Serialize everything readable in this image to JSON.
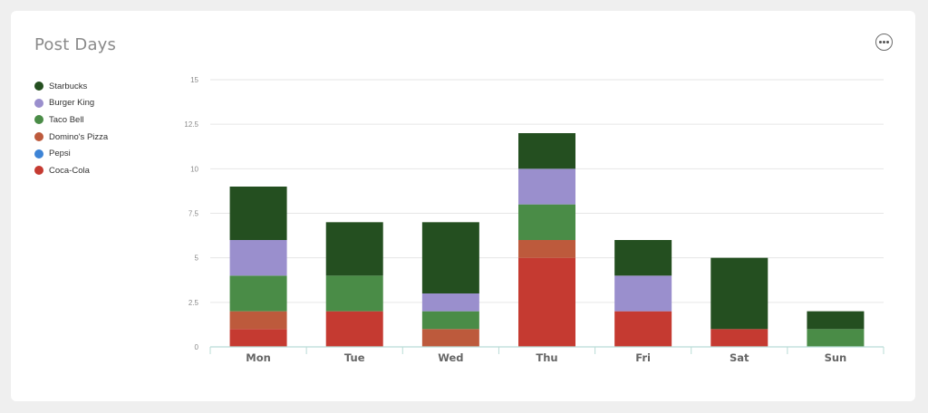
{
  "card": {
    "title": "Post Days",
    "menu_icon": "more-horizontal-circle-icon"
  },
  "chart_data": {
    "type": "bar",
    "stacked": true,
    "title": "Post Days",
    "categories": [
      "Mon",
      "Tue",
      "Wed",
      "Thu",
      "Fri",
      "Sat",
      "Sun"
    ],
    "y_ticks": [
      "0",
      "2.5",
      "5",
      "7.5",
      "10",
      "12.5",
      "15"
    ],
    "ylim": [
      0,
      15
    ],
    "grid": true,
    "legend_position": "left",
    "series": [
      {
        "name": "Coca-Cola",
        "color": "#c53a31",
        "values": [
          1,
          2,
          0,
          5,
          2,
          1,
          0
        ]
      },
      {
        "name": "Pepsi",
        "color": "#3d84d6",
        "values": [
          0,
          0,
          0,
          0,
          0,
          0,
          0
        ]
      },
      {
        "name": "Domino's Pizza",
        "color": "#bd5a3c",
        "values": [
          1,
          0,
          1,
          1,
          0,
          0,
          0
        ]
      },
      {
        "name": "Taco Bell",
        "color": "#4a8c47",
        "values": [
          2,
          2,
          1,
          2,
          0,
          0,
          1
        ]
      },
      {
        "name": "Burger King",
        "color": "#9a8fcd",
        "values": [
          2,
          0,
          1,
          2,
          2,
          0,
          0
        ]
      },
      {
        "name": "Starbucks",
        "color": "#244f20",
        "values": [
          3,
          3,
          4,
          2,
          2,
          4,
          1
        ]
      }
    ]
  }
}
